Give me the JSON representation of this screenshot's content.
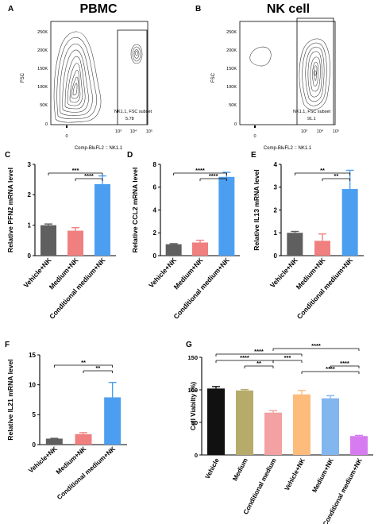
{
  "figure": {
    "panels": {
      "A": {
        "letter": "A",
        "title": "PBMC",
        "ylabel": "FSC",
        "xlabel": "Comp-BluFL2 :: NK1.1",
        "yticks": [
          "250K",
          "200K",
          "150K",
          "100K",
          "50K",
          "0"
        ],
        "xticks": [
          "0",
          "10³",
          "10⁴",
          "10⁵"
        ],
        "gate_label": "NK1.1, FSC subset",
        "gate_value": "5.78"
      },
      "B": {
        "letter": "B",
        "title": "NK cell",
        "ylabel": "FSC",
        "xlabel": "Comp-BluFL2 :: NK1.1",
        "yticks": [
          "250K",
          "200K",
          "150K",
          "100K",
          "50K",
          "0"
        ],
        "xticks": [
          "0",
          "10³",
          "10⁴",
          "10⁵"
        ],
        "gate_label": "NK1.1, FSC subset",
        "gate_value": "91.1"
      },
      "C": {
        "letter": "C"
      },
      "D": {
        "letter": "D"
      },
      "E": {
        "letter": "E"
      },
      "F": {
        "letter": "F"
      },
      "G": {
        "letter": "G"
      }
    }
  },
  "colors": {
    "vehicle_gray": "#5f5f5f",
    "medium_salmon": "#f07f7f",
    "conditional_blue": "#4c9ff0",
    "g_black": "#111111",
    "g_khaki": "#b7ab6c",
    "g_pink": "#f3a1a2",
    "g_orange": "#fdbb7c",
    "g_lightblue": "#82b6ef",
    "g_violet": "#d77cf0"
  },
  "chart_data": [
    {
      "panel": "C",
      "type": "bar",
      "ylabel": "Relative PFN2 mRNA level",
      "categories": [
        "Vehicle+NK",
        "Medium+NK",
        "Conditional medium+NK"
      ],
      "values": [
        1.0,
        0.82,
        2.35
      ],
      "errors": [
        0.04,
        0.1,
        0.27
      ],
      "ylim": [
        0,
        3
      ],
      "yticks": [
        0,
        1,
        2,
        3
      ],
      "significance": [
        {
          "from": 0,
          "to": 2,
          "label": "***"
        },
        {
          "from": 1,
          "to": 2,
          "label": "****"
        }
      ]
    },
    {
      "panel": "D",
      "type": "bar",
      "ylabel": "Relative CCL2 mRNA level",
      "categories": [
        "Vehicle+NK",
        "Medium+NK",
        "Conditional medium+NK"
      ],
      "values": [
        1.0,
        1.15,
        6.9
      ],
      "errors": [
        0.05,
        0.2,
        0.4
      ],
      "ylim": [
        0,
        8
      ],
      "yticks": [
        0,
        2,
        4,
        6,
        8
      ],
      "significance": [
        {
          "from": 0,
          "to": 2,
          "label": "****"
        },
        {
          "from": 1,
          "to": 2,
          "label": "****"
        }
      ]
    },
    {
      "panel": "E",
      "type": "bar",
      "ylabel": "Relative IL13 mRNA level",
      "categories": [
        "Vehicle+NK",
        "Medium+NK",
        "Conditional medium+NK"
      ],
      "values": [
        1.0,
        0.65,
        2.92
      ],
      "errors": [
        0.06,
        0.3,
        0.82
      ],
      "ylim": [
        0,
        4
      ],
      "yticks": [
        0,
        1,
        2,
        3,
        4
      ],
      "significance": [
        {
          "from": 0,
          "to": 2,
          "label": "**"
        },
        {
          "from": 1,
          "to": 2,
          "label": "**"
        }
      ]
    },
    {
      "panel": "F",
      "type": "bar",
      "ylabel": "Relative IL21 mRNA level",
      "categories": [
        "Vehicle+NK",
        "Medium+NK",
        "Conditional medium+NK"
      ],
      "values": [
        1.0,
        1.75,
        7.9
      ],
      "errors": [
        0.05,
        0.25,
        2.5
      ],
      "ylim": [
        0,
        15
      ],
      "yticks": [
        0,
        5,
        10,
        15
      ],
      "significance": [
        {
          "from": 0,
          "to": 2,
          "label": "**"
        },
        {
          "from": 1,
          "to": 2,
          "label": "**"
        }
      ]
    },
    {
      "panel": "G",
      "type": "bar",
      "ylabel": "Cell Viabilty (%)",
      "categories": [
        "Vehicle",
        "Medium",
        "Conditional medium",
        "Vehicle+NK",
        "Medium+NK",
        "Conditional medium+NK"
      ],
      "values": [
        102,
        99,
        65,
        93,
        87,
        29
      ],
      "errors": [
        3,
        1.5,
        3,
        6,
        4,
        1
      ],
      "ylim": [
        0,
        150
      ],
      "yticks": [
        0,
        50,
        100,
        150
      ],
      "significance": [
        {
          "from": 0,
          "to": 2,
          "label": "****"
        },
        {
          "from": 1,
          "to": 2,
          "label": "**"
        },
        {
          "from": 0,
          "to": 3,
          "label": "****"
        },
        {
          "from": 2,
          "to": 5,
          "label": "****"
        },
        {
          "from": 2,
          "to": 3,
          "label": "***"
        },
        {
          "from": 4,
          "to": 5,
          "label": "****"
        },
        {
          "from": 3,
          "to": 5,
          "label": "****"
        }
      ]
    }
  ]
}
